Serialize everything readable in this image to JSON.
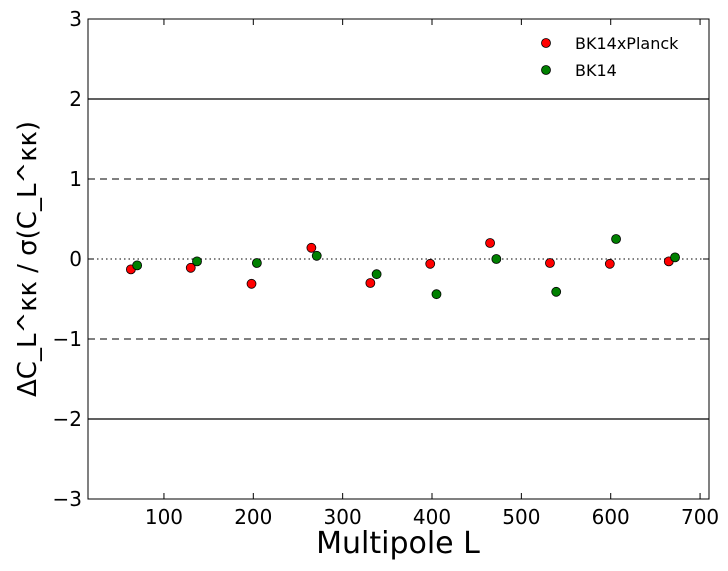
{
  "chart_data": {
    "type": "scatter",
    "xlabel": "Multipole L",
    "ylabel": "ΔC_L^κκ / σ(C_L^κκ)",
    "xlim": [
      15,
      710
    ],
    "ylim": [
      -3,
      3
    ],
    "x_ticks": [
      100,
      200,
      300,
      400,
      500,
      600,
      700
    ],
    "x_tick_labels": [
      "100",
      "200",
      "300",
      "400",
      "500",
      "600",
      "700"
    ],
    "y_ticks": [
      -3,
      -2,
      -1,
      0,
      1,
      2,
      3
    ],
    "y_tick_labels": [
      "−3",
      "−2",
      "−1",
      "0",
      "1",
      "2",
      "3"
    ],
    "grid": false,
    "legend_position": "top-right",
    "reference_lines": [
      {
        "y": 2,
        "style": "solid"
      },
      {
        "y": -2,
        "style": "solid"
      },
      {
        "y": 1,
        "style": "dashed"
      },
      {
        "y": -1,
        "style": "dashed"
      },
      {
        "y": 0,
        "style": "dotted"
      }
    ],
    "series": [
      {
        "name": "BK14xPlanck",
        "color": "#ff0000",
        "x": [
          63,
          130,
          198,
          265,
          331,
          398,
          465,
          532,
          599,
          665
        ],
        "y": [
          -0.13,
          -0.11,
          -0.31,
          0.14,
          -0.3,
          -0.06,
          0.2,
          -0.05,
          -0.06,
          -0.03
        ]
      },
      {
        "name": "BK14",
        "color": "#008000",
        "x": [
          70,
          137,
          204,
          271,
          338,
          405,
          472,
          539,
          606,
          672
        ],
        "y": [
          -0.08,
          -0.03,
          -0.05,
          0.04,
          -0.19,
          -0.44,
          0.0,
          -0.41,
          0.25,
          0.02
        ]
      }
    ]
  }
}
